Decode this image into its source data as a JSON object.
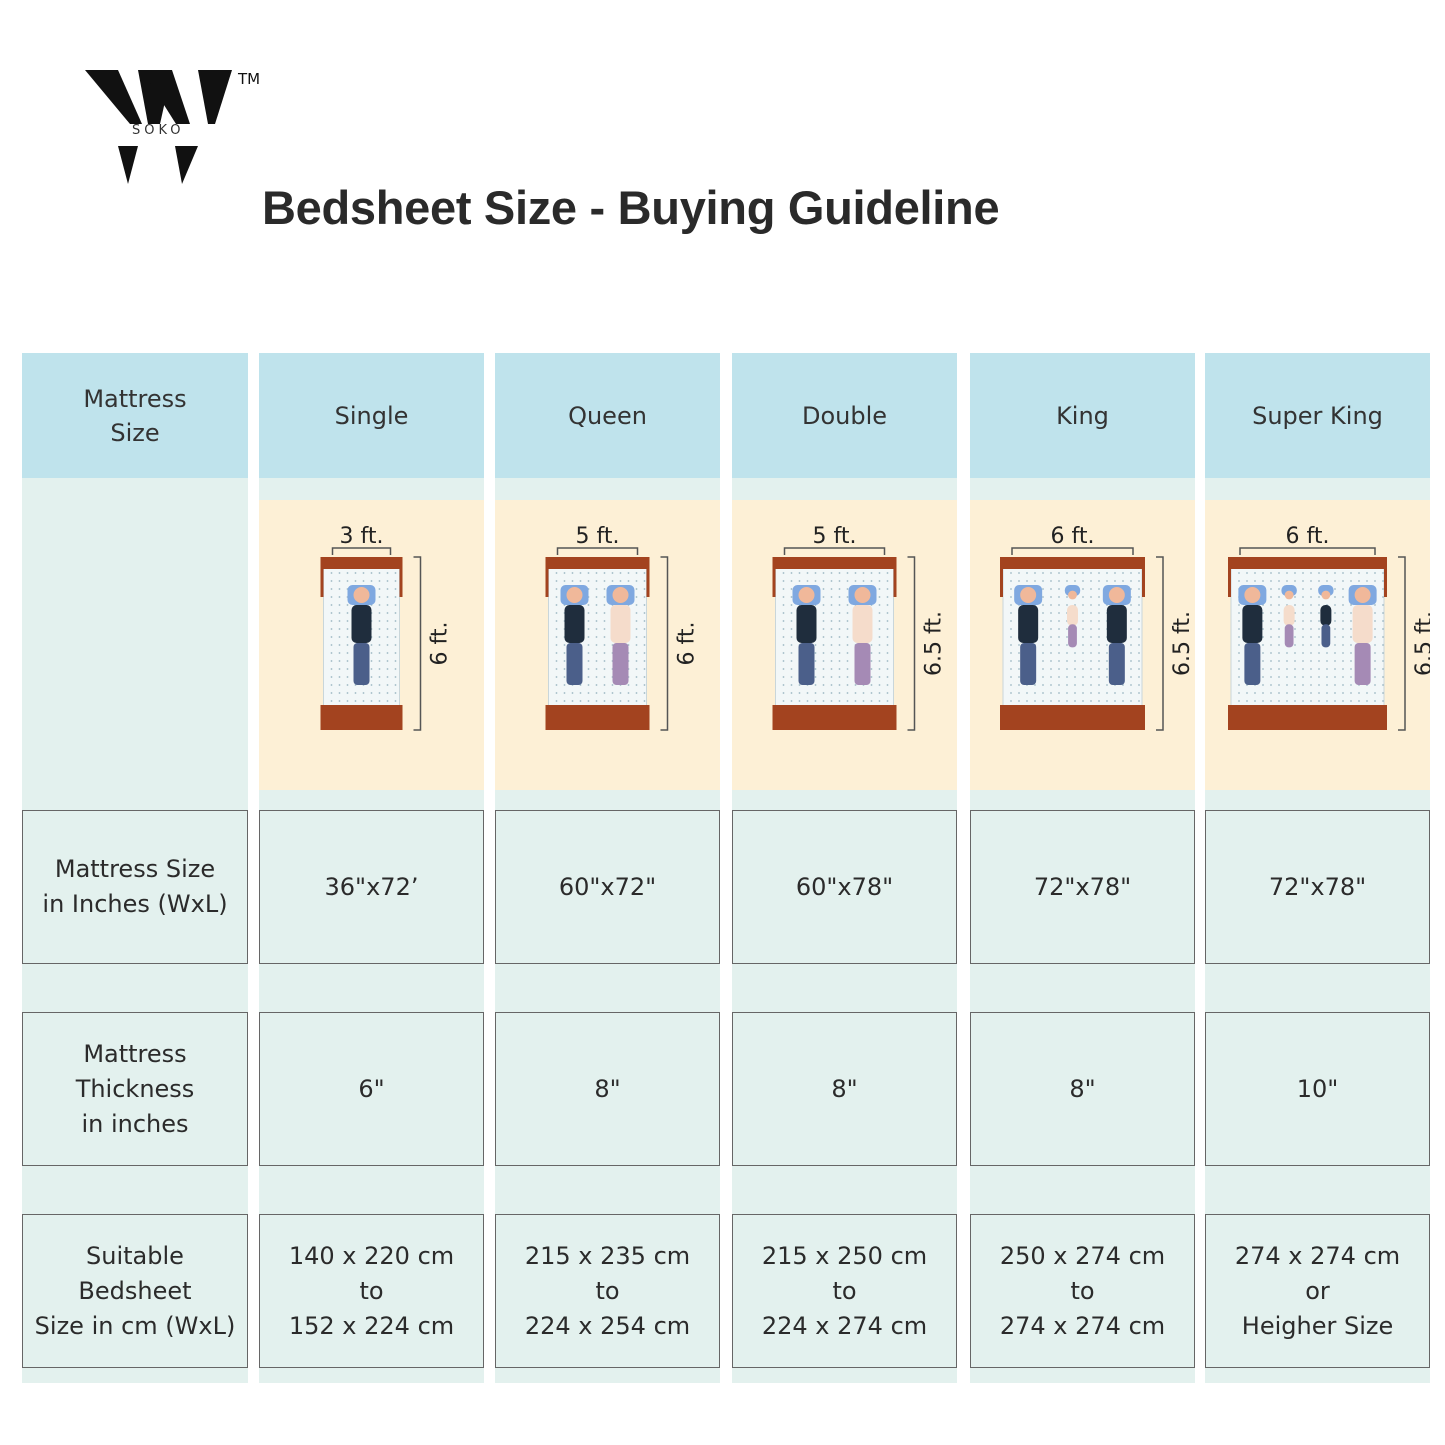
{
  "logo": {
    "letter": "W",
    "subtext": "SOKO",
    "trademark": "TM"
  },
  "title": "Bedsheet Size - Buying Guideline",
  "colors": {
    "header_bg": "#bfe3ec",
    "cell_bg": "#e3f1ee",
    "illustration_bg": "#fdf0d6",
    "bed_frame": "#a3431f",
    "pillow": "#7fa8e0"
  },
  "row_labels": {
    "mattress_size": "Mattress\nSize",
    "inches": "Mattress Size\nin Inches (WxL)",
    "thickness": "Mattress\nThickness\nin inches",
    "bedsheet": "Suitable\nBedsheet\nSize in cm (WxL)"
  },
  "columns": [
    {
      "name": "Single",
      "width_label": "3 ft.",
      "length_label": "6 ft.",
      "inches": "36\"x72’",
      "thickness": "6\"",
      "bedsheet": "140 x 220 cm\nto\n152 x 224 cm"
    },
    {
      "name": "Queen",
      "width_label": "5 ft.",
      "length_label": "6 ft.",
      "inches": "60\"x72\"",
      "thickness": "8\"",
      "bedsheet": "215 x 235 cm\nto\n224 x 254 cm"
    },
    {
      "name": "Double",
      "width_label": "5 ft.",
      "length_label": "6.5 ft.",
      "inches": "60\"x78\"",
      "thickness": "8\"",
      "bedsheet": "215 x 250 cm\nto\n224 x 274 cm"
    },
    {
      "name": "King",
      "width_label": "6 ft.",
      "length_label": "6.5 ft.",
      "inches": "72\"x78\"",
      "thickness": "8\"",
      "bedsheet": "250 x 274 cm\nto\n274 x 274 cm"
    },
    {
      "name": "Super King",
      "width_label": "6 ft.",
      "length_label": "6.5 ft.",
      "inches": "72\"x78\"",
      "thickness": "10\"",
      "bedsheet": "274 x 274 cm\nor\nHeigher Size"
    }
  ]
}
